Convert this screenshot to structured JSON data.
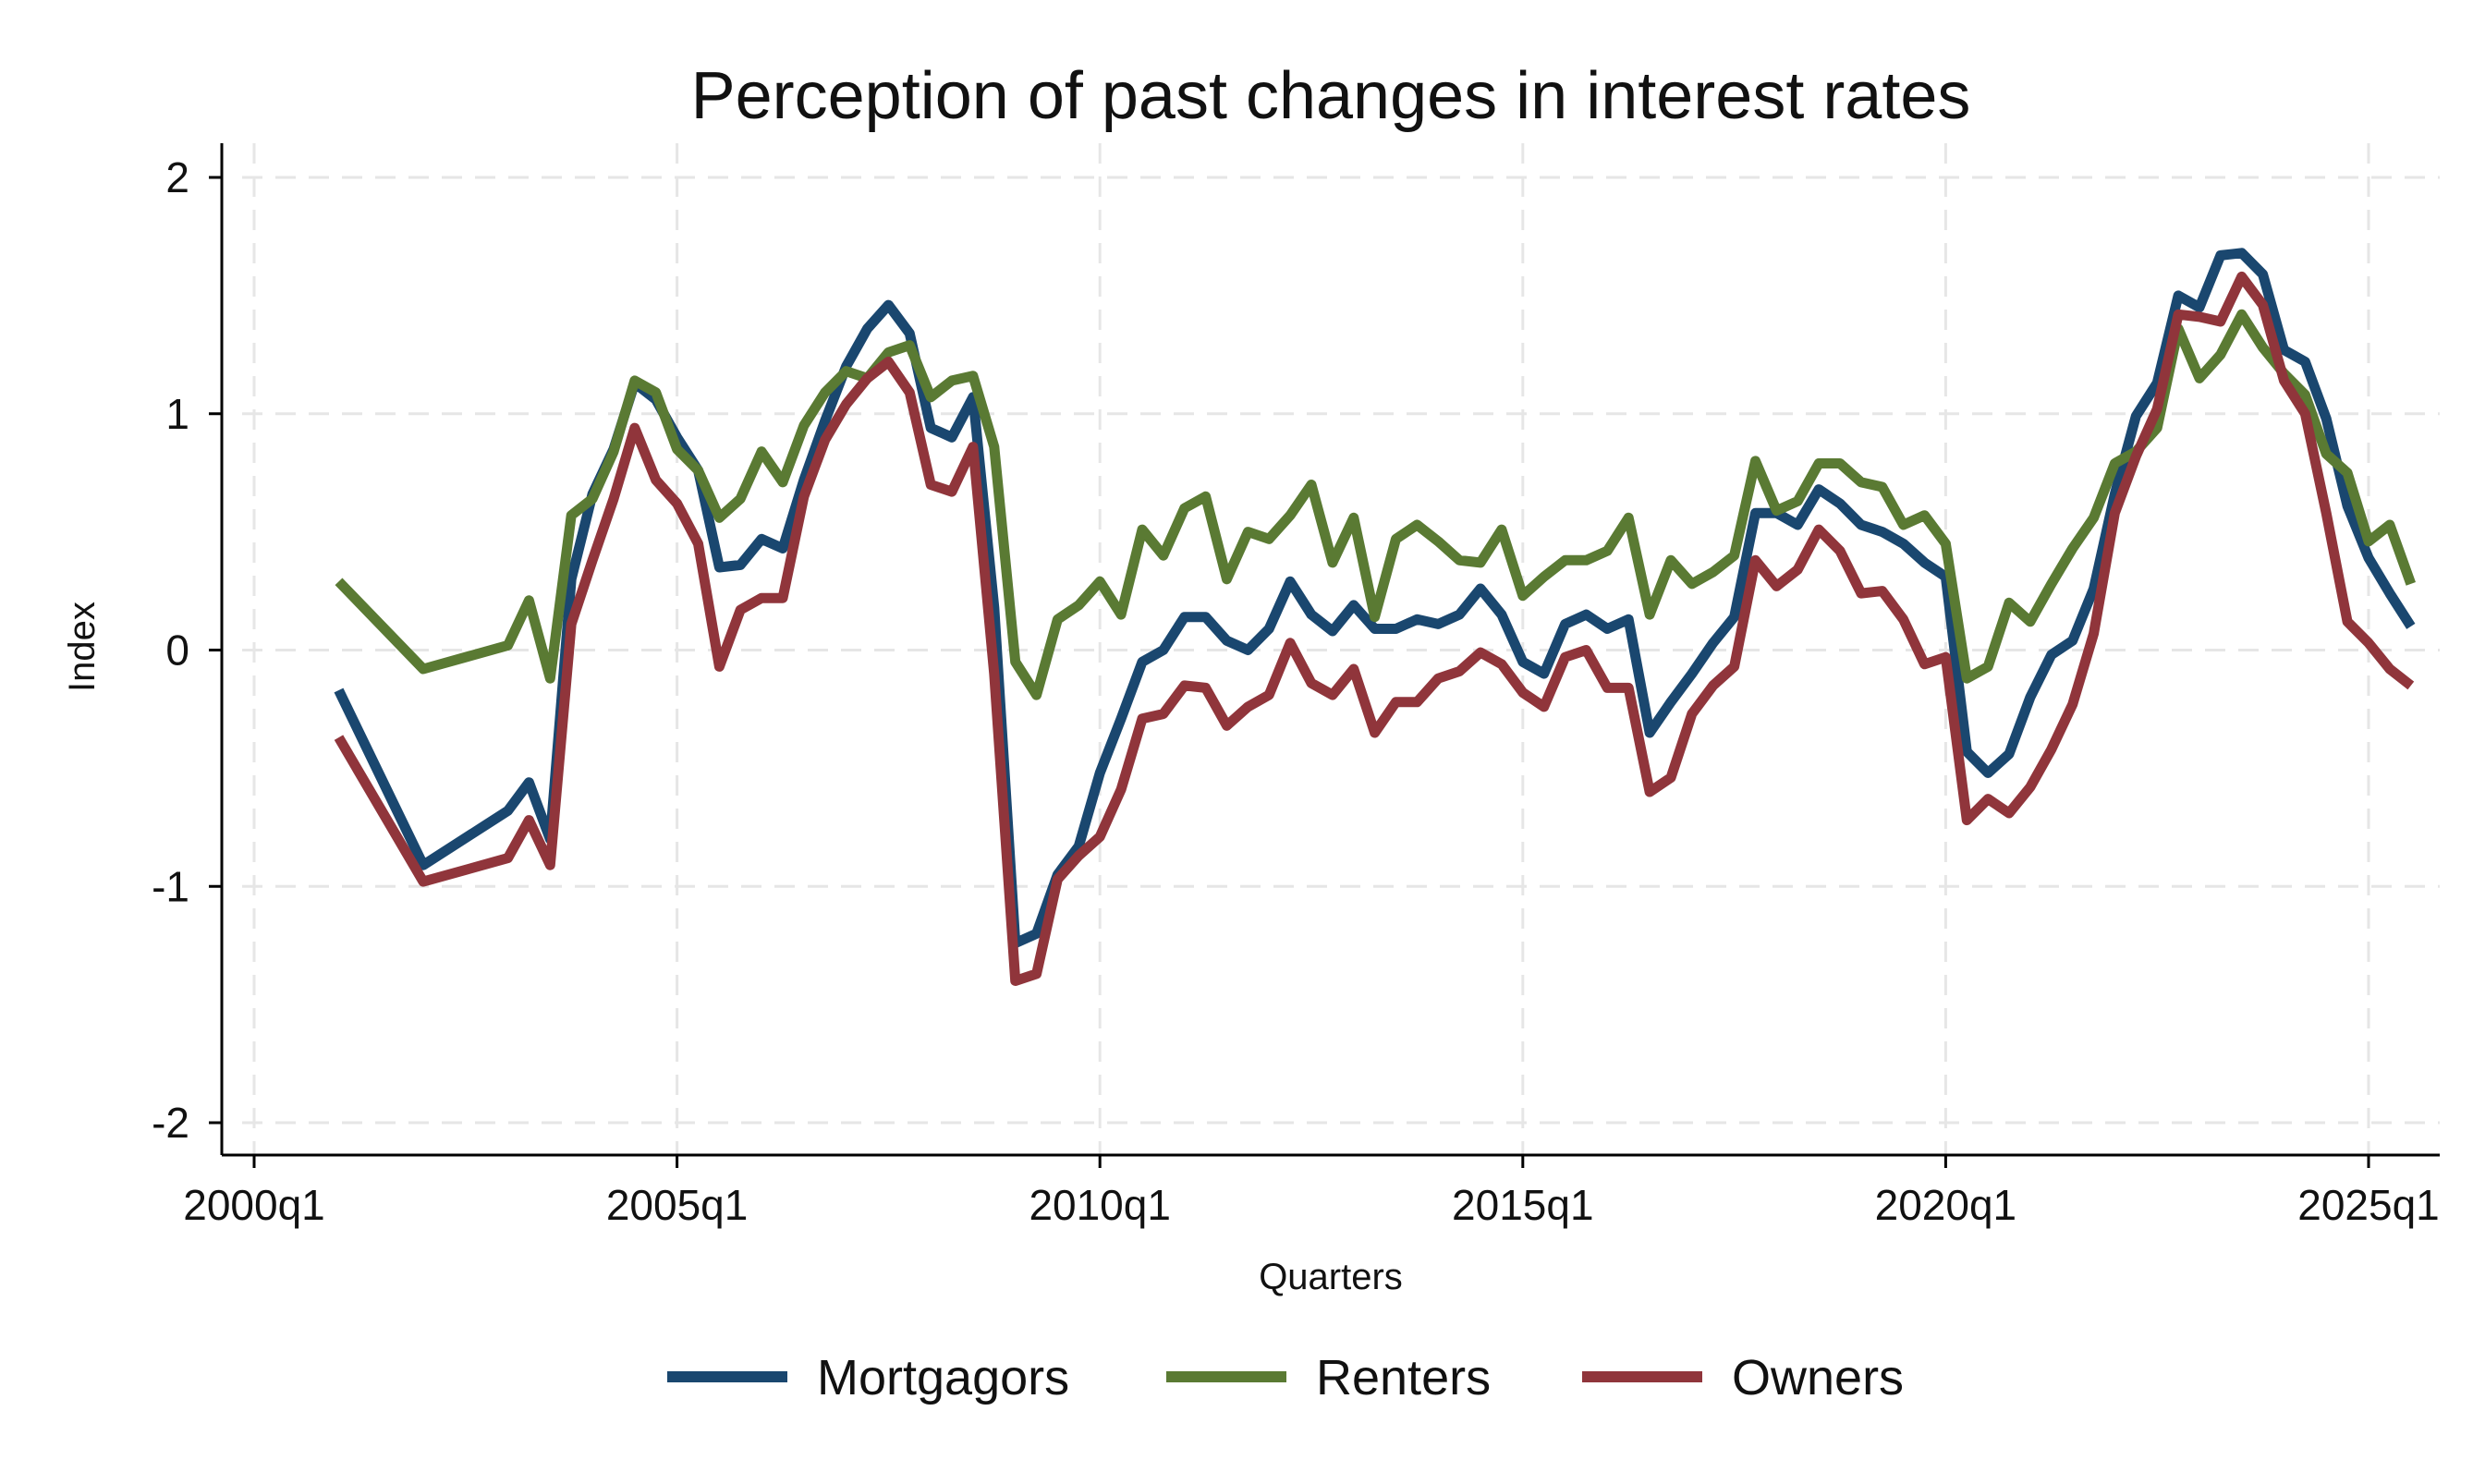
{
  "chart_data": {
    "type": "line",
    "title": "Perception of past changes in interest rates",
    "xlabel": "Quarters",
    "ylabel": "Index",
    "xlim": [
      2000.0,
      2026.0
    ],
    "ylim": [
      -2.15,
      2.15
    ],
    "x_ticks": [
      {
        "value": 2000,
        "label": "2000q1"
      },
      {
        "value": 2005,
        "label": "2005q1"
      },
      {
        "value": 2010,
        "label": "2010q1"
      },
      {
        "value": 2015,
        "label": "2015q1"
      },
      {
        "value": 2020,
        "label": "2020q1"
      },
      {
        "value": 2025,
        "label": "2025q1"
      }
    ],
    "y_ticks": [
      {
        "value": 2,
        "label": "2"
      },
      {
        "value": 1,
        "label": "1"
      },
      {
        "value": 0,
        "label": "0"
      },
      {
        "value": -1,
        "label": "-1"
      },
      {
        "value": -2,
        "label": "-2"
      }
    ],
    "grid": true,
    "legend_position": "bottom",
    "series": [
      {
        "name": "Mortgagors",
        "color": "#1a476f",
        "x": [
          2001.0,
          2002.0,
          2003.0,
          2003.25,
          2003.5,
          2003.75,
          2004.0,
          2004.25,
          2004.5,
          2004.75,
          2005.0,
          2005.25,
          2005.5,
          2005.75,
          2006.0,
          2006.25,
          2006.5,
          2006.75,
          2007.0,
          2007.25,
          2007.5,
          2007.75,
          2008.0,
          2008.25,
          2008.5,
          2008.75,
          2009.0,
          2009.25,
          2009.5,
          2009.75,
          2010.0,
          2010.25,
          2010.5,
          2010.75,
          2011.0,
          2011.25,
          2011.5,
          2011.75,
          2012.0,
          2012.25,
          2012.5,
          2012.75,
          2013.0,
          2013.25,
          2013.5,
          2013.75,
          2014.0,
          2014.25,
          2014.5,
          2014.75,
          2015.0,
          2015.25,
          2015.5,
          2015.75,
          2016.0,
          2016.25,
          2016.5,
          2016.75,
          2017.0,
          2017.25,
          2017.5,
          2017.75,
          2018.0,
          2018.25,
          2018.5,
          2018.75,
          2019.0,
          2019.25,
          2019.5,
          2019.75,
          2020.0,
          2020.25,
          2020.5,
          2020.75,
          2021.0,
          2021.25,
          2021.5,
          2021.75,
          2022.0,
          2022.25,
          2022.5,
          2022.75,
          2023.0,
          2023.25,
          2023.5,
          2023.75,
          2024.0,
          2024.25,
          2024.5,
          2024.75,
          2025.0,
          2025.25,
          2025.5
        ],
        "values": [
          -0.17,
          -0.91,
          -0.68,
          -0.56,
          -0.8,
          0.3,
          0.66,
          0.85,
          1.13,
          1.06,
          0.9,
          0.76,
          0.35,
          0.36,
          0.47,
          0.43,
          0.72,
          0.97,
          1.2,
          1.36,
          1.46,
          1.34,
          0.94,
          0.9,
          1.07,
          0.18,
          -1.24,
          -1.2,
          -0.95,
          -0.83,
          -0.52,
          -0.29,
          -0.05,
          0.0,
          0.14,
          0.14,
          0.04,
          0.0,
          0.09,
          0.29,
          0.15,
          0.08,
          0.19,
          0.09,
          0.09,
          0.13,
          0.11,
          0.15,
          0.26,
          0.15,
          -0.05,
          -0.1,
          0.11,
          0.15,
          0.09,
          0.13,
          -0.35,
          -0.22,
          -0.1,
          0.03,
          0.14,
          0.58,
          0.58,
          0.53,
          0.68,
          0.62,
          0.53,
          0.5,
          0.45,
          0.37,
          0.31,
          -0.43,
          -0.52,
          -0.44,
          -0.2,
          -0.02,
          0.04,
          0.26,
          0.66,
          0.99,
          1.13,
          1.5,
          1.45,
          1.67,
          1.68,
          1.59,
          1.27,
          1.22,
          0.98,
          0.61,
          0.39,
          0.24,
          0.1
        ]
      },
      {
        "name": "Renters",
        "color": "#5a7a33",
        "x": [
          2001.0,
          2002.0,
          2003.0,
          2003.25,
          2003.5,
          2003.75,
          2004.0,
          2004.25,
          2004.5,
          2004.75,
          2005.0,
          2005.25,
          2005.5,
          2005.75,
          2006.0,
          2006.25,
          2006.5,
          2006.75,
          2007.0,
          2007.25,
          2007.5,
          2007.75,
          2008.0,
          2008.25,
          2008.5,
          2008.75,
          2009.0,
          2009.25,
          2009.5,
          2009.75,
          2010.0,
          2010.25,
          2010.5,
          2010.75,
          2011.0,
          2011.25,
          2011.5,
          2011.75,
          2012.0,
          2012.25,
          2012.5,
          2012.75,
          2013.0,
          2013.25,
          2013.5,
          2013.75,
          2014.0,
          2014.25,
          2014.5,
          2014.75,
          2015.0,
          2015.25,
          2015.5,
          2015.75,
          2016.0,
          2016.25,
          2016.5,
          2016.75,
          2017.0,
          2017.25,
          2017.5,
          2017.75,
          2018.0,
          2018.25,
          2018.5,
          2018.75,
          2019.0,
          2019.25,
          2019.5,
          2019.75,
          2020.0,
          2020.25,
          2020.5,
          2020.75,
          2021.0,
          2021.25,
          2021.5,
          2021.75,
          2022.0,
          2022.25,
          2022.5,
          2022.75,
          2023.0,
          2023.25,
          2023.5,
          2023.75,
          2024.0,
          2024.25,
          2024.5,
          2024.75,
          2025.0,
          2025.25,
          2025.5
        ],
        "values": [
          0.29,
          -0.08,
          0.02,
          0.21,
          -0.12,
          0.57,
          0.64,
          0.84,
          1.14,
          1.09,
          0.85,
          0.76,
          0.56,
          0.64,
          0.84,
          0.71,
          0.95,
          1.09,
          1.18,
          1.15,
          1.26,
          1.29,
          1.07,
          1.14,
          1.16,
          0.86,
          -0.05,
          -0.19,
          0.13,
          0.19,
          0.29,
          0.15,
          0.51,
          0.4,
          0.6,
          0.65,
          0.3,
          0.5,
          0.47,
          0.57,
          0.7,
          0.37,
          0.56,
          0.14,
          0.47,
          0.53,
          0.46,
          0.38,
          0.37,
          0.51,
          0.23,
          0.31,
          0.38,
          0.38,
          0.42,
          0.56,
          0.15,
          0.38,
          0.28,
          0.33,
          0.4,
          0.8,
          0.59,
          0.63,
          0.79,
          0.79,
          0.71,
          0.69,
          0.53,
          0.57,
          0.45,
          -0.12,
          -0.07,
          0.2,
          0.12,
          0.28,
          0.43,
          0.56,
          0.79,
          0.84,
          0.94,
          1.36,
          1.15,
          1.25,
          1.42,
          1.28,
          1.17,
          1.08,
          0.83,
          0.75,
          0.46,
          0.53,
          0.28
        ]
      },
      {
        "name": "Owners",
        "color": "#90353b",
        "x": [
          2001.0,
          2002.0,
          2003.0,
          2003.25,
          2003.5,
          2003.75,
          2004.0,
          2004.25,
          2004.5,
          2004.75,
          2005.0,
          2005.25,
          2005.5,
          2005.75,
          2006.0,
          2006.25,
          2006.5,
          2006.75,
          2007.0,
          2007.25,
          2007.5,
          2007.75,
          2008.0,
          2008.25,
          2008.5,
          2008.75,
          2009.0,
          2009.25,
          2009.5,
          2009.75,
          2010.0,
          2010.25,
          2010.5,
          2010.75,
          2011.0,
          2011.25,
          2011.5,
          2011.75,
          2012.0,
          2012.25,
          2012.5,
          2012.75,
          2013.0,
          2013.25,
          2013.5,
          2013.75,
          2014.0,
          2014.25,
          2014.5,
          2014.75,
          2015.0,
          2015.25,
          2015.5,
          2015.75,
          2016.0,
          2016.25,
          2016.5,
          2016.75,
          2017.0,
          2017.25,
          2017.5,
          2017.75,
          2018.0,
          2018.25,
          2018.5,
          2018.75,
          2019.0,
          2019.25,
          2019.5,
          2019.75,
          2020.0,
          2020.25,
          2020.5,
          2020.75,
          2021.0,
          2021.25,
          2021.5,
          2021.75,
          2022.0,
          2022.25,
          2022.5,
          2022.75,
          2023.0,
          2023.25,
          2023.5,
          2023.75,
          2024.0,
          2024.25,
          2024.5,
          2024.75,
          2025.0,
          2025.25,
          2025.5
        ],
        "values": [
          -0.37,
          -0.98,
          -0.88,
          -0.72,
          -0.91,
          0.11,
          0.38,
          0.64,
          0.94,
          0.72,
          0.62,
          0.45,
          -0.07,
          0.17,
          0.22,
          0.22,
          0.65,
          0.89,
          1.04,
          1.15,
          1.22,
          1.09,
          0.7,
          0.67,
          0.86,
          -0.1,
          -1.4,
          -1.37,
          -0.97,
          -0.87,
          -0.79,
          -0.59,
          -0.29,
          -0.27,
          -0.15,
          -0.16,
          -0.32,
          -0.24,
          -0.19,
          0.03,
          -0.14,
          -0.19,
          -0.08,
          -0.35,
          -0.22,
          -0.22,
          -0.12,
          -0.09,
          -0.01,
          -0.06,
          -0.18,
          -0.24,
          -0.03,
          0.0,
          -0.16,
          -0.16,
          -0.6,
          -0.54,
          -0.27,
          -0.15,
          -0.07,
          0.38,
          0.27,
          0.34,
          0.51,
          0.42,
          0.24,
          0.25,
          0.13,
          -0.06,
          -0.03,
          -0.72,
          -0.63,
          -0.69,
          -0.58,
          -0.42,
          -0.23,
          0.07,
          0.58,
          0.82,
          1.02,
          1.42,
          1.41,
          1.39,
          1.58,
          1.46,
          1.14,
          1.0,
          0.58,
          0.12,
          0.03,
          -0.08,
          -0.15
        ]
      }
    ]
  }
}
